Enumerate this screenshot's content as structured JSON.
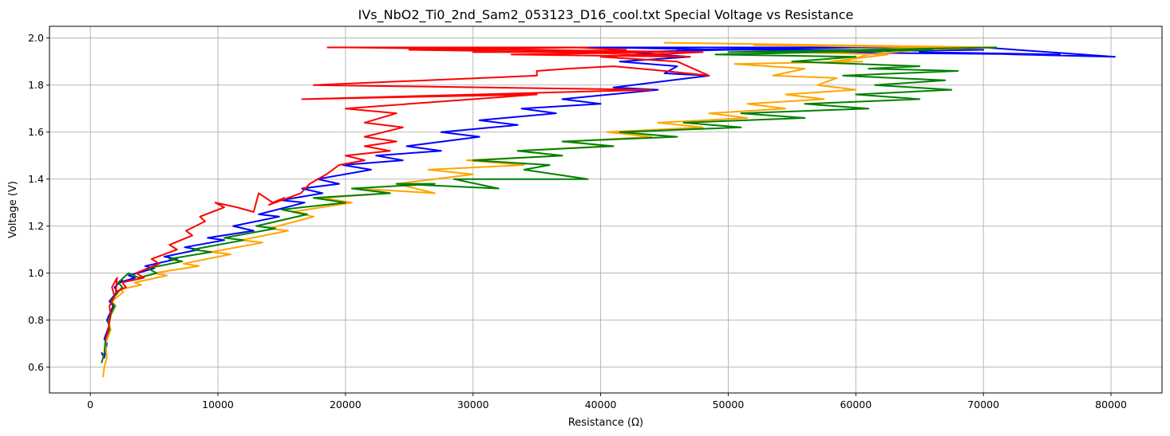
{
  "chart_data": {
    "type": "line",
    "title": "IVs_NbO2_Ti0_2nd_Sam2_053123_D16_cool.txt Special Voltage vs Resistance",
    "xlabel": "Resistance (Ω)",
    "ylabel": "Voltage (V)",
    "xlim": [
      -3200,
      84000
    ],
    "ylim": [
      0.49,
      2.05
    ],
    "xticks": [
      0,
      10000,
      20000,
      30000,
      40000,
      50000,
      60000,
      70000,
      80000
    ],
    "yticks": [
      0.6,
      0.8,
      1.0,
      1.2,
      1.4,
      1.6,
      1.8,
      2.0
    ],
    "xtick_labels": [
      "0",
      "10000",
      "20000",
      "30000",
      "40000",
      "50000",
      "60000",
      "70000",
      "80000"
    ],
    "ytick_labels": [
      "0.6",
      "0.8",
      "1.0",
      "1.2",
      "1.4",
      "1.6",
      "1.8",
      "2.0"
    ],
    "grid": true,
    "series": [
      {
        "color": "#0000ff",
        "points": [
          [
            900,
            0.66
          ],
          [
            1100,
            0.64
          ],
          [
            1300,
            0.7
          ],
          [
            1100,
            0.72
          ],
          [
            1500,
            0.78
          ],
          [
            1300,
            0.8
          ],
          [
            1800,
            0.86
          ],
          [
            1500,
            0.88
          ],
          [
            2100,
            0.92
          ],
          [
            1900,
            0.94
          ],
          [
            2500,
            0.97
          ],
          [
            2300,
            0.96
          ],
          [
            3500,
            0.98
          ],
          [
            3000,
            0.99
          ],
          [
            5000,
            1.02
          ],
          [
            4300,
            1.03
          ],
          [
            6800,
            1.06
          ],
          [
            5800,
            1.07
          ],
          [
            8500,
            1.1
          ],
          [
            7400,
            1.11
          ],
          [
            10500,
            1.14
          ],
          [
            9200,
            1.15
          ],
          [
            12800,
            1.18
          ],
          [
            11200,
            1.2
          ],
          [
            14800,
            1.24
          ],
          [
            13200,
            1.25
          ],
          [
            16800,
            1.3
          ],
          [
            15000,
            1.31
          ],
          [
            18200,
            1.34
          ],
          [
            16600,
            1.36
          ],
          [
            19500,
            1.38
          ],
          [
            17800,
            1.4
          ],
          [
            22000,
            1.44
          ],
          [
            19800,
            1.46
          ],
          [
            24500,
            1.48
          ],
          [
            22400,
            1.5
          ],
          [
            27500,
            1.52
          ],
          [
            24800,
            1.54
          ],
          [
            30500,
            1.58
          ],
          [
            27500,
            1.6
          ],
          [
            33500,
            1.63
          ],
          [
            30500,
            1.65
          ],
          [
            36500,
            1.68
          ],
          [
            33800,
            1.7
          ],
          [
            40000,
            1.72
          ],
          [
            37000,
            1.74
          ],
          [
            44500,
            1.78
          ],
          [
            41000,
            1.79
          ],
          [
            48500,
            1.84
          ],
          [
            45000,
            1.85
          ],
          [
            46000,
            1.88
          ],
          [
            41500,
            1.9
          ],
          [
            47000,
            1.92
          ],
          [
            42000,
            1.94
          ],
          [
            50000,
            1.95
          ],
          [
            40000,
            1.96
          ],
          [
            60000,
            1.96
          ],
          [
            46000,
            1.95
          ],
          [
            70000,
            1.95
          ],
          [
            55000,
            1.94
          ],
          [
            76000,
            1.93
          ],
          [
            65000,
            1.94
          ],
          [
            80300,
            1.92
          ],
          [
            70000,
            1.96
          ],
          [
            39000,
            1.96
          ]
        ]
      },
      {
        "color": "#ffa500",
        "points": [
          [
            1000,
            0.56
          ],
          [
            1100,
            0.6
          ],
          [
            1300,
            0.64
          ],
          [
            1200,
            0.7
          ],
          [
            1600,
            0.76
          ],
          [
            1400,
            0.8
          ],
          [
            2000,
            0.86
          ],
          [
            1700,
            0.88
          ],
          [
            2600,
            0.92
          ],
          [
            2300,
            0.93
          ],
          [
            4000,
            0.95
          ],
          [
            3500,
            0.96
          ],
          [
            6000,
            0.99
          ],
          [
            5000,
            1.0
          ],
          [
            8500,
            1.03
          ],
          [
            7300,
            1.04
          ],
          [
            11000,
            1.08
          ],
          [
            9500,
            1.09
          ],
          [
            13500,
            1.13
          ],
          [
            11800,
            1.14
          ],
          [
            15500,
            1.18
          ],
          [
            14000,
            1.19
          ],
          [
            17500,
            1.24
          ],
          [
            15800,
            1.26
          ],
          [
            20500,
            1.3
          ],
          [
            18200,
            1.32
          ],
          [
            23500,
            1.34
          ],
          [
            21000,
            1.36
          ],
          [
            27000,
            1.34
          ],
          [
            24000,
            1.38
          ],
          [
            30000,
            1.42
          ],
          [
            26500,
            1.44
          ],
          [
            34000,
            1.46
          ],
          [
            29500,
            1.48
          ],
          [
            37000,
            1.5
          ],
          [
            33500,
            1.52
          ],
          [
            40500,
            1.54
          ],
          [
            37500,
            1.56
          ],
          [
            44000,
            1.58
          ],
          [
            40500,
            1.6
          ],
          [
            48000,
            1.62
          ],
          [
            44500,
            1.64
          ],
          [
            51500,
            1.66
          ],
          [
            48500,
            1.68
          ],
          [
            54500,
            1.7
          ],
          [
            51500,
            1.72
          ],
          [
            57500,
            1.74
          ],
          [
            54500,
            1.76
          ],
          [
            60000,
            1.78
          ],
          [
            57000,
            1.8
          ],
          [
            58500,
            1.83
          ],
          [
            53500,
            1.84
          ],
          [
            56000,
            1.87
          ],
          [
            50500,
            1.89
          ],
          [
            60500,
            1.9
          ],
          [
            58000,
            1.9
          ],
          [
            62500,
            1.93
          ],
          [
            55000,
            1.94
          ],
          [
            66000,
            1.96
          ],
          [
            52000,
            1.97
          ],
          [
            70500,
            1.96
          ],
          [
            45000,
            1.98
          ],
          [
            71000,
            1.96
          ],
          [
            65000,
            1.95
          ],
          [
            61000,
            1.93
          ],
          [
            59000,
            1.9
          ]
        ]
      },
      {
        "color": "#008000",
        "points": [
          [
            900,
            0.62
          ],
          [
            1100,
            0.66
          ],
          [
            1200,
            0.72
          ],
          [
            1500,
            0.76
          ],
          [
            1400,
            0.8
          ],
          [
            1900,
            0.86
          ],
          [
            1600,
            0.88
          ],
          [
            2500,
            0.94
          ],
          [
            2200,
            0.96
          ],
          [
            3000,
            1.0
          ],
          [
            3800,
            0.98
          ],
          [
            5200,
            1.0
          ],
          [
            4500,
            1.02
          ],
          [
            7200,
            1.05
          ],
          [
            6200,
            1.06
          ],
          [
            9500,
            1.09
          ],
          [
            8000,
            1.1
          ],
          [
            12000,
            1.14
          ],
          [
            10500,
            1.15
          ],
          [
            14500,
            1.19
          ],
          [
            13000,
            1.2
          ],
          [
            17000,
            1.25
          ],
          [
            15000,
            1.27
          ],
          [
            20000,
            1.3
          ],
          [
            17500,
            1.32
          ],
          [
            23500,
            1.34
          ],
          [
            20500,
            1.36
          ],
          [
            27000,
            1.38
          ],
          [
            24000,
            1.38
          ],
          [
            32000,
            1.36
          ],
          [
            28500,
            1.4
          ],
          [
            39000,
            1.4
          ],
          [
            34000,
            1.44
          ],
          [
            36000,
            1.46
          ],
          [
            30000,
            1.48
          ],
          [
            37000,
            1.5
          ],
          [
            33500,
            1.52
          ],
          [
            41000,
            1.54
          ],
          [
            37000,
            1.56
          ],
          [
            46000,
            1.58
          ],
          [
            41500,
            1.6
          ],
          [
            51000,
            1.62
          ],
          [
            46500,
            1.64
          ],
          [
            56000,
            1.66
          ],
          [
            51000,
            1.68
          ],
          [
            61000,
            1.7
          ],
          [
            56000,
            1.72
          ],
          [
            65000,
            1.74
          ],
          [
            60000,
            1.76
          ],
          [
            67500,
            1.78
          ],
          [
            61500,
            1.8
          ],
          [
            67000,
            1.82
          ],
          [
            59000,
            1.84
          ],
          [
            68000,
            1.86
          ],
          [
            61000,
            1.87
          ],
          [
            65000,
            1.88
          ],
          [
            55000,
            1.9
          ],
          [
            60000,
            1.92
          ],
          [
            49000,
            1.93
          ],
          [
            66000,
            1.95
          ],
          [
            50000,
            1.94
          ],
          [
            71000,
            1.96
          ]
        ]
      },
      {
        "color": "#ff0000",
        "points": [
          [
            1200,
            0.72
          ],
          [
            1400,
            0.76
          ],
          [
            1600,
            0.82
          ],
          [
            1500,
            0.86
          ],
          [
            1900,
            0.9
          ],
          [
            1700,
            0.94
          ],
          [
            2100,
            0.98
          ],
          [
            2000,
            0.92
          ],
          [
            2800,
            0.94
          ],
          [
            2500,
            0.96
          ],
          [
            4200,
            0.98
          ],
          [
            3600,
            1.0
          ],
          [
            5400,
            1.04
          ],
          [
            4800,
            1.06
          ],
          [
            6800,
            1.1
          ],
          [
            6200,
            1.12
          ],
          [
            8000,
            1.16
          ],
          [
            7500,
            1.18
          ],
          [
            9000,
            1.22
          ],
          [
            8600,
            1.24
          ],
          [
            10500,
            1.28
          ],
          [
            9800,
            1.3
          ],
          [
            11500,
            1.28
          ],
          [
            12800,
            1.26
          ],
          [
            13200,
            1.34
          ],
          [
            14300,
            1.3
          ],
          [
            15200,
            1.32
          ],
          [
            14000,
            1.29
          ],
          [
            16500,
            1.34
          ],
          [
            17200,
            1.38
          ],
          [
            18500,
            1.42
          ],
          [
            19500,
            1.46
          ],
          [
            21500,
            1.48
          ],
          [
            20000,
            1.5
          ],
          [
            23500,
            1.52
          ],
          [
            21500,
            1.54
          ],
          [
            24000,
            1.56
          ],
          [
            21500,
            1.58
          ],
          [
            24500,
            1.62
          ],
          [
            21500,
            1.64
          ],
          [
            24000,
            1.68
          ],
          [
            20000,
            1.7
          ],
          [
            35000,
            1.76
          ],
          [
            16600,
            1.74
          ],
          [
            44000,
            1.78
          ],
          [
            17500,
            1.8
          ],
          [
            35000,
            1.84
          ],
          [
            35000,
            1.86
          ],
          [
            37500,
            1.87
          ],
          [
            41000,
            1.88
          ],
          [
            45000,
            1.86
          ],
          [
            48500,
            1.84
          ],
          [
            46000,
            1.9
          ],
          [
            40000,
            1.92
          ],
          [
            48000,
            1.94
          ],
          [
            20000,
            1.96
          ],
          [
            18600,
            1.96
          ],
          [
            38000,
            1.96
          ],
          [
            42000,
            1.95
          ],
          [
            30000,
            1.94
          ],
          [
            45000,
            1.94
          ],
          [
            33000,
            1.93
          ],
          [
            47000,
            1.92
          ],
          [
            38000,
            1.94
          ],
          [
            25000,
            1.95
          ],
          [
            39000,
            1.96
          ]
        ]
      }
    ]
  }
}
